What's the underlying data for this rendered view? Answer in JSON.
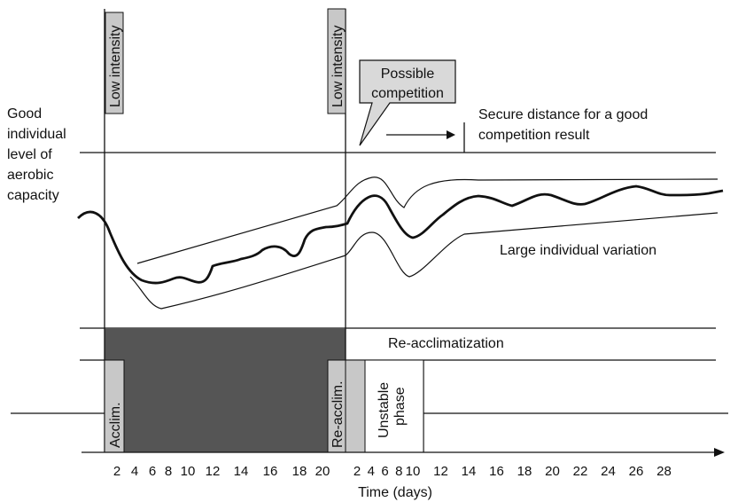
{
  "left_label": [
    "Good",
    "individual",
    "level of",
    "aerobic",
    "capacity"
  ],
  "boxes": {
    "low_intensity_1": "Low intensity",
    "low_intensity_2": "Low intensity",
    "acclim": "Acclim.",
    "re_acclim": "Re-acclim.",
    "unstable_phase": [
      "Unstable",
      "phase"
    ]
  },
  "callout": [
    "Possible",
    "competition"
  ],
  "annotations": {
    "secure_distance": [
      "Secure distance for a good",
      "competition result"
    ],
    "large_variation": "Large individual variation",
    "re_acclimatization": "Re-acclimatization"
  },
  "x_axis": {
    "label": "Time (days)",
    "ticks_phase1": [
      "2",
      "4",
      "6",
      "8",
      "10",
      "12",
      "14",
      "16",
      "18",
      "20"
    ],
    "ticks_phase2": [
      "2",
      "4",
      "6",
      "8",
      "10",
      "12",
      "14",
      "16",
      "18",
      "20",
      "22",
      "24",
      "26",
      "28"
    ]
  },
  "colors": {
    "dark_block": "#555555",
    "box_fill": "#c8c8c8",
    "callout_fill": "#d9d9d9",
    "line": "#111111"
  }
}
